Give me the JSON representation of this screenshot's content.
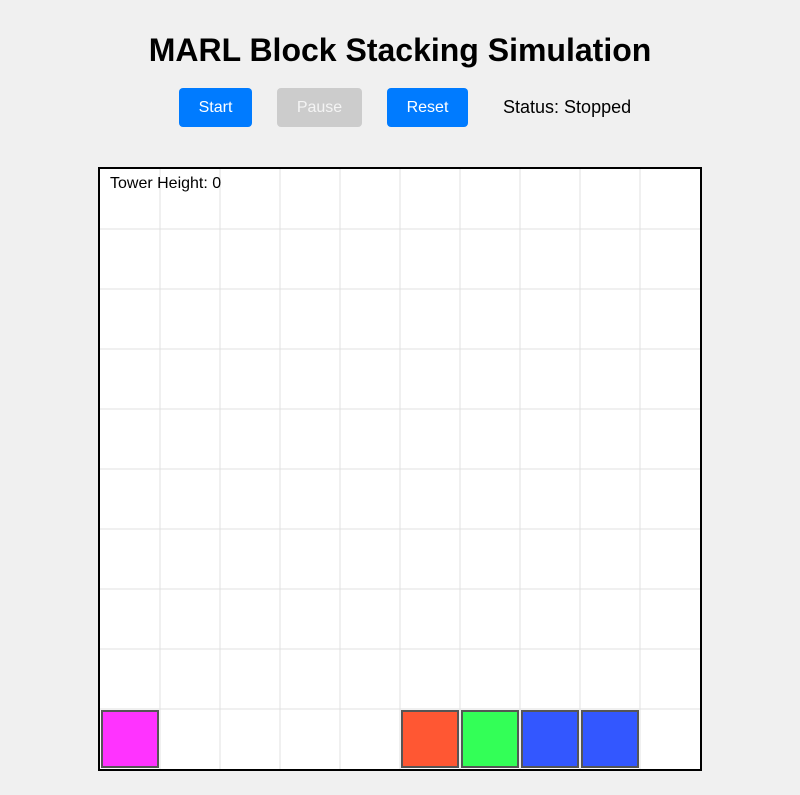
{
  "title": "MARL Block Stacking Simulation",
  "controls": {
    "start_label": "Start",
    "pause_label": "Pause",
    "reset_label": "Reset",
    "status_prefix": "Status:",
    "status_value": "Stopped",
    "pause_disabled": true
  },
  "board": {
    "columns": 10,
    "rows": 10,
    "tower_height_label": "Tower Height:",
    "tower_height": 0,
    "grid_color": "#e0e0e0",
    "blocks": [
      {
        "name": "block-magenta",
        "col": 0,
        "row": 9,
        "color": "#ff33ff"
      },
      {
        "name": "block-orange",
        "col": 5,
        "row": 9,
        "color": "#ff5733"
      },
      {
        "name": "block-green",
        "col": 6,
        "row": 9,
        "color": "#33ff57"
      },
      {
        "name": "block-blue-1",
        "col": 7,
        "row": 9,
        "color": "#3357ff"
      },
      {
        "name": "block-blue-2",
        "col": 8,
        "row": 9,
        "color": "#3357ff"
      }
    ]
  }
}
